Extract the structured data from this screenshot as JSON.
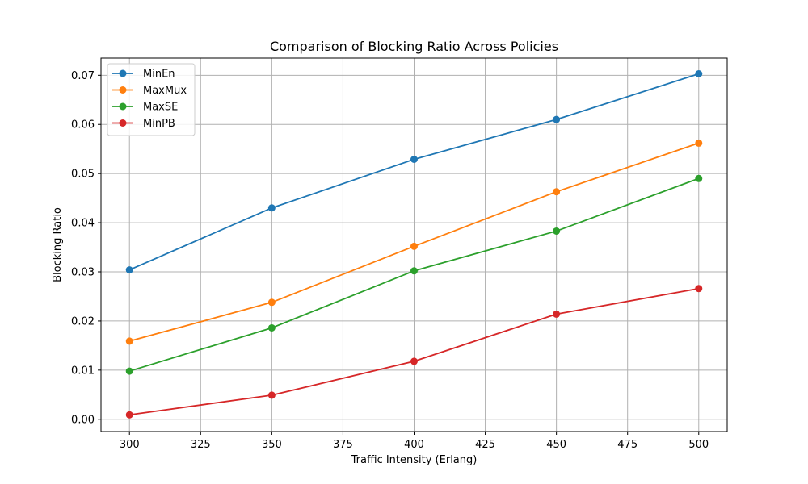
{
  "chart_data": {
    "type": "line",
    "title": "Comparison of Blocking Ratio Across Policies",
    "xlabel": "Traffic Intensity (Erlang)",
    "ylabel": "Blocking Ratio",
    "x": [
      300,
      350,
      400,
      450,
      500
    ],
    "xlim": [
      290,
      510
    ],
    "ylim": [
      -0.0025,
      0.0735
    ],
    "xticks": [
      300,
      325,
      350,
      375,
      400,
      425,
      450,
      475,
      500
    ],
    "yticks": [
      0.0,
      0.01,
      0.02,
      0.03,
      0.04,
      0.05,
      0.06,
      0.07
    ],
    "ytick_labels": [
      "0.00",
      "0.01",
      "0.02",
      "0.03",
      "0.04",
      "0.05",
      "0.06",
      "0.07"
    ],
    "grid": true,
    "legend_position": "top-left",
    "series": [
      {
        "name": "MinEn",
        "color": "#1f77b4",
        "values": [
          0.0304,
          0.043,
          0.0529,
          0.061,
          0.0703
        ]
      },
      {
        "name": "MaxMux",
        "color": "#ff7f0e",
        "values": [
          0.0159,
          0.0238,
          0.0352,
          0.0463,
          0.0562
        ]
      },
      {
        "name": "MaxSE",
        "color": "#2ca02c",
        "values": [
          0.0098,
          0.0186,
          0.0302,
          0.0383,
          0.049
        ]
      },
      {
        "name": "MinPB",
        "color": "#d62728",
        "values": [
          0.0009,
          0.0049,
          0.0118,
          0.0214,
          0.0266
        ]
      }
    ]
  }
}
